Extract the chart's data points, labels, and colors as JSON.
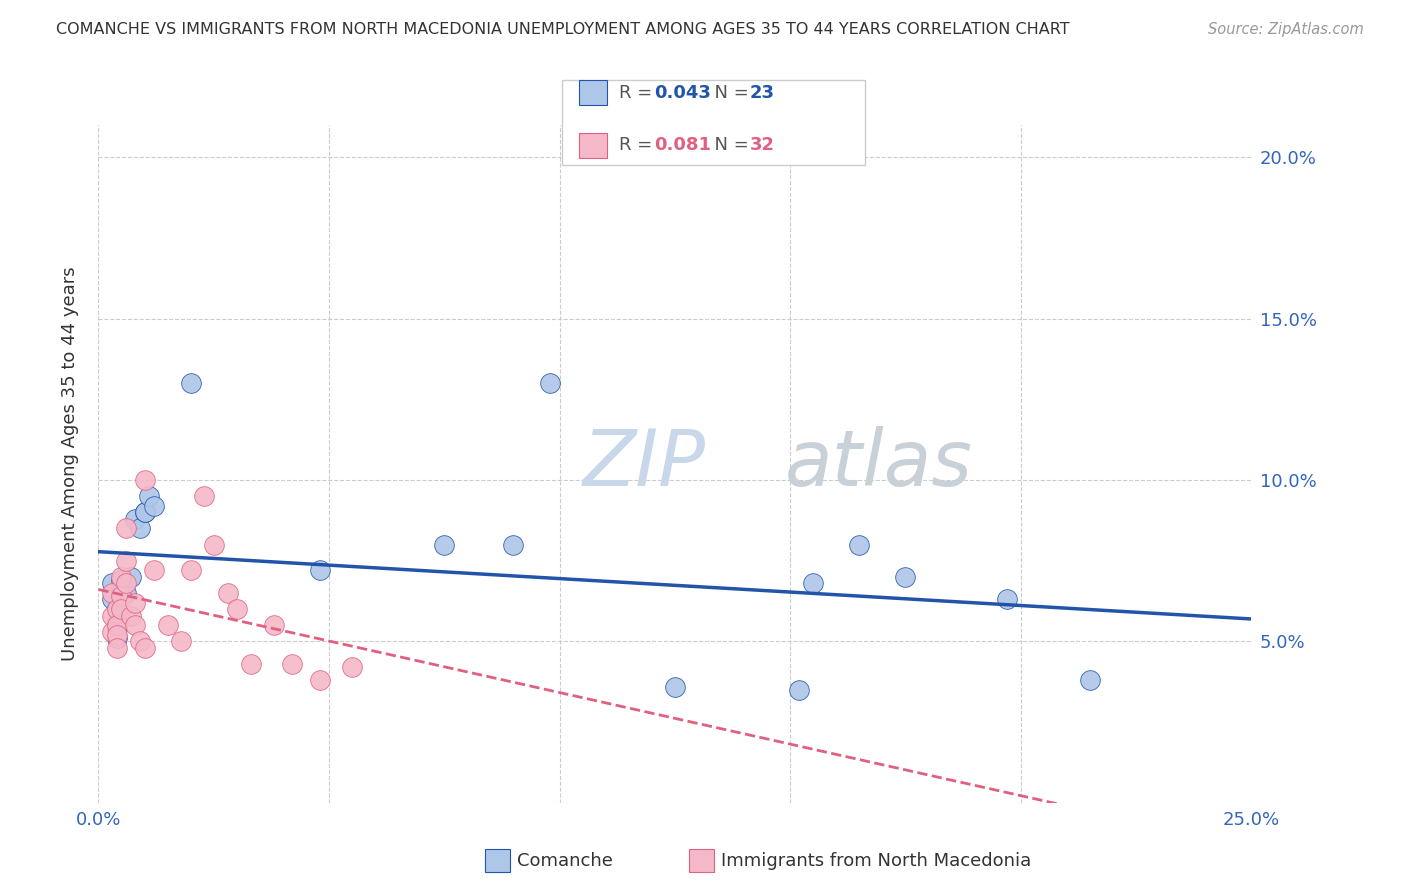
{
  "title": "COMANCHE VS IMMIGRANTS FROM NORTH MACEDONIA UNEMPLOYMENT AMONG AGES 35 TO 44 YEARS CORRELATION CHART",
  "source": "Source: ZipAtlas.com",
  "ylabel": "Unemployment Among Ages 35 to 44 years",
  "xlim": [
    0.0,
    0.25
  ],
  "ylim": [
    0.0,
    0.21
  ],
  "xticks": [
    0.0,
    0.05,
    0.1,
    0.15,
    0.2,
    0.25
  ],
  "xticklabels": [
    "0.0%",
    "",
    "",
    "",
    "",
    "25.0%"
  ],
  "yticks": [
    0.0,
    0.05,
    0.1,
    0.15,
    0.2
  ],
  "yticklabels_right": [
    "",
    "5.0%",
    "10.0%",
    "15.0%",
    "20.0%"
  ],
  "legend_labels": [
    "Comanche",
    "Immigrants from North Macedonia"
  ],
  "R_comanche": 0.043,
  "N_comanche": 23,
  "R_macedonia": 0.081,
  "N_macedonia": 32,
  "color_comanche": "#aec6e8",
  "color_macedonia": "#f5b8c8",
  "line_color_comanche": "#2255aa",
  "line_color_macedonia": "#e06080",
  "watermark_zip": "ZIP",
  "watermark_atlas": "atlas",
  "watermark_color_zip": "#c8d8ea",
  "watermark_color_atlas": "#c8d0d8",
  "bg_color": "#ffffff",
  "grid_color": "#cccccc",
  "comanche_x": [
    0.003,
    0.003,
    0.004,
    0.004,
    0.004,
    0.004,
    0.005,
    0.005,
    0.006,
    0.007,
    0.008,
    0.009,
    0.01,
    0.01,
    0.011,
    0.012,
    0.02,
    0.048,
    0.075,
    0.09,
    0.098,
    0.125,
    0.152,
    0.155,
    0.165,
    0.175,
    0.197,
    0.215
  ],
  "comanche_y": [
    0.068,
    0.063,
    0.06,
    0.056,
    0.054,
    0.051,
    0.069,
    0.065,
    0.065,
    0.07,
    0.088,
    0.085,
    0.09,
    0.09,
    0.095,
    0.092,
    0.13,
    0.072,
    0.08,
    0.08,
    0.13,
    0.036,
    0.035,
    0.068,
    0.08,
    0.07,
    0.063,
    0.038
  ],
  "macedonia_x": [
    0.003,
    0.003,
    0.003,
    0.004,
    0.004,
    0.004,
    0.004,
    0.005,
    0.005,
    0.005,
    0.006,
    0.006,
    0.006,
    0.007,
    0.008,
    0.008,
    0.009,
    0.01,
    0.01,
    0.012,
    0.015,
    0.018,
    0.02,
    0.023,
    0.025,
    0.028,
    0.03,
    0.033,
    0.038,
    0.042,
    0.048,
    0.055
  ],
  "macedonia_y": [
    0.065,
    0.058,
    0.053,
    0.06,
    0.055,
    0.052,
    0.048,
    0.07,
    0.064,
    0.06,
    0.085,
    0.075,
    0.068,
    0.058,
    0.062,
    0.055,
    0.05,
    0.1,
    0.048,
    0.072,
    0.055,
    0.05,
    0.072,
    0.095,
    0.08,
    0.065,
    0.06,
    0.043,
    0.055,
    0.043,
    0.038,
    0.042
  ]
}
